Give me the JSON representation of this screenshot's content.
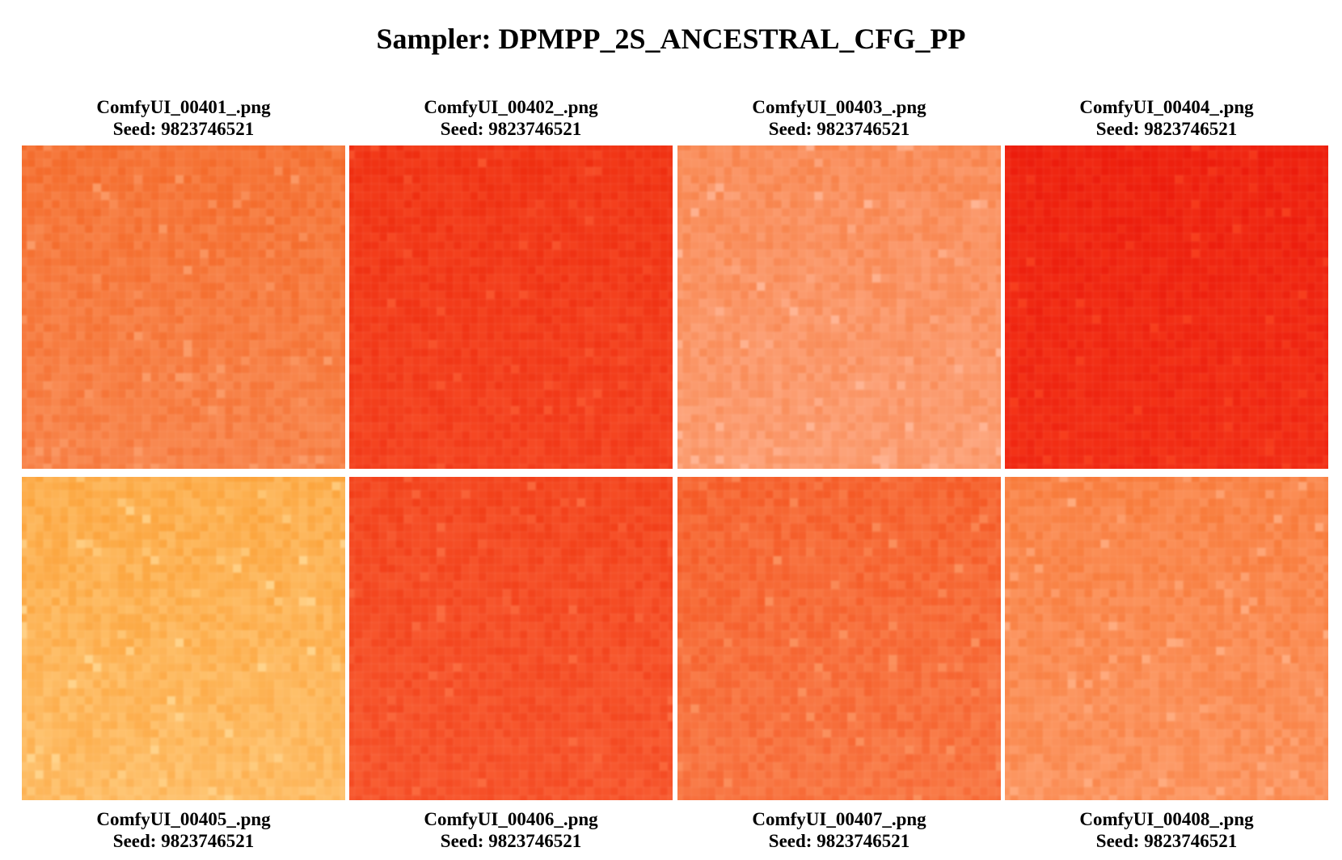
{
  "title": "Sampler: DPMPP_2S_ANCESTRAL_CFG_PP",
  "images": [
    {
      "filename": "ComfyUI_00401_.png",
      "seed_label": "Seed: 9823746521",
      "base_color": "#f46a2a",
      "light_color": "#fb9a66"
    },
    {
      "filename": "ComfyUI_00402_.png",
      "seed_label": "Seed: 9823746521",
      "base_color": "#ef2e10",
      "light_color": "#f9542c"
    },
    {
      "filename": "ComfyUI_00403_.png",
      "seed_label": "Seed: 9823746521",
      "base_color": "#f8834b",
      "light_color": "#ffb493"
    },
    {
      "filename": "ComfyUI_00404_.png",
      "seed_label": "Seed: 9823746521",
      "base_color": "#ec1c0c",
      "light_color": "#f73d1c"
    },
    {
      "filename": "ComfyUI_00405_.png",
      "seed_label": "Seed: 9823746521",
      "base_color": "#fca43c",
      "light_color": "#ffd38a"
    },
    {
      "filename": "ComfyUI_00406_.png",
      "seed_label": "Seed: 9823746521",
      "base_color": "#f23e18",
      "light_color": "#fb6a3e"
    },
    {
      "filename": "ComfyUI_00407_.png",
      "seed_label": "Seed: 9823746521",
      "base_color": "#f55a26",
      "light_color": "#fb8f5c"
    },
    {
      "filename": "ComfyUI_00408_.png",
      "seed_label": "Seed: 9823746521",
      "base_color": "#f87a3a",
      "light_color": "#ffab7e"
    }
  ]
}
